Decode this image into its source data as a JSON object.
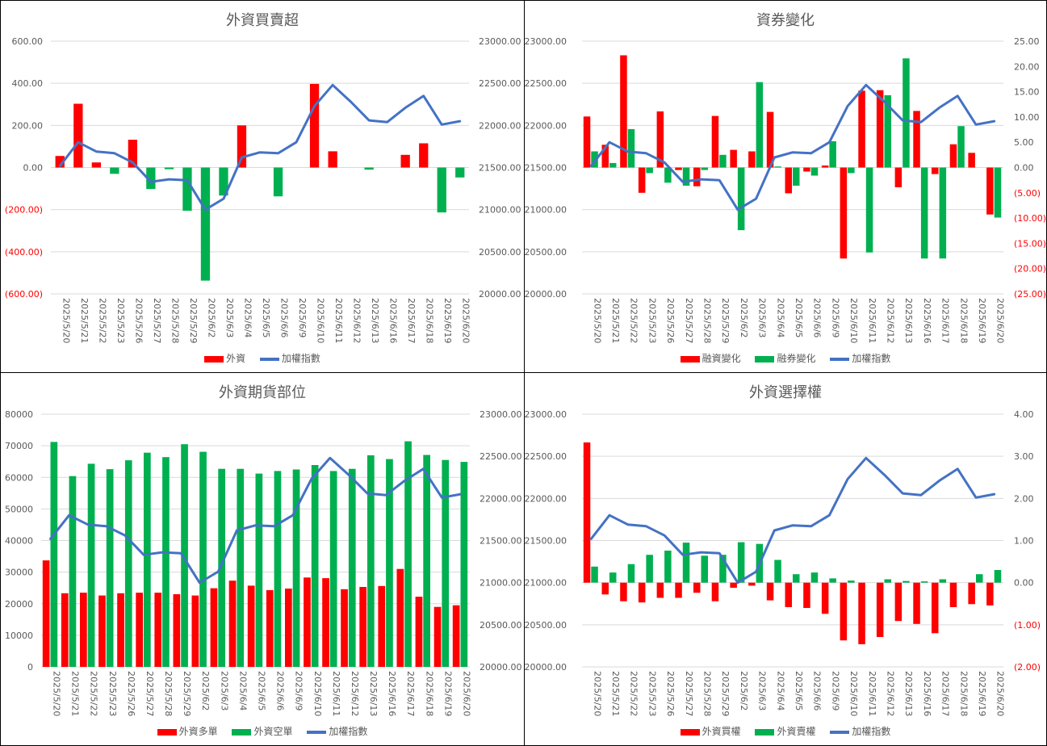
{
  "colors": {
    "red": "#FF0000",
    "green": "#00B050",
    "blue": "#4472C4",
    "grid": "#D9D9D9",
    "text": "#595959"
  },
  "chart_data": [
    {
      "type": "bar",
      "title": "外資買賣超",
      "categories": [
        "2025/5/20",
        "2025/5/21",
        "2025/5/22",
        "2025/5/23",
        "2025/5/26",
        "2025/5/27",
        "2025/5/28",
        "2025/5/29",
        "2025/6/2",
        "2025/6/3",
        "2025/6/4",
        "2025/6/5",
        "2025/6/6",
        "2025/6/9",
        "2025/6/10",
        "2025/6/11",
        "2025/6/12",
        "2025/6/13",
        "2025/6/16",
        "2025/6/17",
        "2025/6/18",
        "2025/6/19",
        "2025/6/20"
      ],
      "left_axis": {
        "ylim": [
          -600,
          600
        ],
        "ticks": [
          -600,
          -400,
          -200,
          0,
          200,
          400,
          600
        ],
        "tick_labels": [
          "(600.00)",
          "(400.00)",
          "(200.00)",
          "0.00",
          "200.00",
          "400.00",
          "600.00"
        ]
      },
      "right_axis": {
        "ylim": [
          20000,
          23000
        ],
        "ticks": [
          20000,
          20500,
          21000,
          21500,
          22000,
          22500,
          23000
        ],
        "tick_labels": [
          "20000.00",
          "20500.00",
          "21000.00",
          "21500.00",
          "22000.00",
          "22500.00",
          "23000.00"
        ]
      },
      "series": [
        {
          "name": "外資",
          "kind": "signed_bar",
          "axis": "left",
          "color": "#FF0000",
          "neg_color": "#00B050",
          "values": [
            55,
            303,
            24,
            -30,
            132,
            -102,
            -8,
            -205,
            -537,
            -133,
            200,
            0,
            -137,
            0,
            397,
            77,
            0,
            -10,
            0,
            60,
            115,
            -213,
            -47
          ]
        },
        {
          "name": "加權指數",
          "kind": "line",
          "axis": "right",
          "color": "#4472C4",
          "values": [
            21520,
            21800,
            21690,
            21670,
            21560,
            21330,
            21360,
            21350,
            21000,
            21130,
            21620,
            21680,
            21670,
            21800,
            22230,
            22480,
            22280,
            22060,
            22040,
            22210,
            22350,
            22010,
            22050
          ]
        }
      ]
    },
    {
      "type": "bar",
      "title": "資券變化",
      "categories": [
        "2025/5/20",
        "2025/5/21",
        "2025/5/22",
        "2025/5/23",
        "2025/5/26",
        "2025/5/27",
        "2025/5/28",
        "2025/5/29",
        "2025/6/2",
        "2025/6/3",
        "2025/6/4",
        "2025/6/5",
        "2025/6/6",
        "2025/6/9",
        "2025/6/10",
        "2025/6/11",
        "2025/6/12",
        "2025/6/13",
        "2025/6/16",
        "2025/6/17",
        "2025/6/18",
        "2025/6/19",
        "2025/6/20"
      ],
      "left_axis": {
        "ylim": [
          20000,
          23000
        ],
        "ticks": [
          20000,
          20500,
          21000,
          21500,
          22000,
          22500,
          23000
        ],
        "tick_labels": [
          "20000.00",
          "20500.00",
          "21000.00",
          "21500.00",
          "22000.00",
          "22500.00",
          "23000.00"
        ]
      },
      "right_axis": {
        "ylim": [
          -25,
          25
        ],
        "ticks": [
          -25,
          -20,
          -15,
          -10,
          -5,
          0,
          5,
          10,
          15,
          20,
          25
        ],
        "tick_labels": [
          "(25.00)",
          "(20.00)",
          "(15.00)",
          "(10.00)",
          "(5.00)",
          "0.00",
          "5.00",
          "10.00",
          "15.00",
          "20.00",
          "25.00"
        ]
      },
      "series": [
        {
          "name": "融資變化",
          "kind": "bar",
          "axis": "right",
          "color": "#FF0000",
          "values": [
            10.1,
            4.5,
            22.2,
            -5.0,
            11.1,
            -0.5,
            -3.7,
            10.2,
            3.5,
            3.2,
            11.0,
            -5.1,
            -0.8,
            0.4,
            -18.0,
            15.2,
            15.3,
            -3.9,
            11.2,
            -1.3,
            4.6,
            2.9,
            -9.3
          ]
        },
        {
          "name": "融券變化",
          "kind": "bar",
          "axis": "right",
          "color": "#00B050",
          "values": [
            3.2,
            0.9,
            7.6,
            -1.1,
            -3.0,
            -3.6,
            -0.5,
            2.5,
            -12.4,
            16.9,
            0.2,
            -3.6,
            -1.6,
            5.2,
            -1.1,
            -16.8,
            14.3,
            21.6,
            -18.0,
            -18.0,
            8.2,
            0.0,
            -9.9
          ]
        },
        {
          "name": "加權指數",
          "kind": "line",
          "axis": "left",
          "color": "#4472C4",
          "values": [
            21520,
            21800,
            21690,
            21670,
            21560,
            21330,
            21360,
            21350,
            21000,
            21130,
            21620,
            21680,
            21670,
            21800,
            22230,
            22480,
            22280,
            22060,
            22040,
            22210,
            22350,
            22010,
            22050
          ]
        }
      ]
    },
    {
      "type": "bar",
      "title": "外資期貨部位",
      "categories": [
        "2025/5/20",
        "2025/5/21",
        "2025/5/22",
        "2025/5/23",
        "2025/5/26",
        "2025/5/27",
        "2025/5/28",
        "2025/5/29",
        "2025/6/2",
        "2025/6/3",
        "2025/6/4",
        "2025/6/5",
        "2025/6/6",
        "2025/6/9",
        "2025/6/10",
        "2025/6/11",
        "2025/6/12",
        "2025/6/13",
        "2025/6/16",
        "2025/6/17",
        "2025/6/18",
        "2025/6/19",
        "2025/6/20"
      ],
      "left_axis": {
        "ylim": [
          0,
          80000
        ],
        "ticks": [
          0,
          10000,
          20000,
          30000,
          40000,
          50000,
          60000,
          70000,
          80000
        ],
        "tick_labels": [
          "0",
          "10000",
          "20000",
          "30000",
          "40000",
          "50000",
          "60000",
          "70000",
          "80000"
        ]
      },
      "right_axis": {
        "ylim": [
          20000,
          23000
        ],
        "ticks": [
          20000,
          20500,
          21000,
          21500,
          22000,
          22500,
          23000
        ],
        "tick_labels": [
          "20000.00",
          "20500.00",
          "21000.00",
          "21500.00",
          "22000.00",
          "22500.00",
          "23000.00"
        ]
      },
      "series": [
        {
          "name": "外資多單",
          "kind": "bar",
          "axis": "left",
          "color": "#FF0000",
          "values": [
            33700,
            23300,
            23500,
            22600,
            23300,
            23500,
            23500,
            23000,
            22600,
            24900,
            27300,
            25700,
            24300,
            24800,
            28300,
            28100,
            24600,
            25300,
            25600,
            31000,
            22200,
            19000,
            19500
          ]
        },
        {
          "name": "外資空單",
          "kind": "bar",
          "axis": "left",
          "color": "#00B050",
          "values": [
            71200,
            60400,
            64300,
            62600,
            65400,
            67800,
            66400,
            70500,
            68100,
            62700,
            62700,
            61200,
            62000,
            62500,
            63900,
            62000,
            62700,
            67000,
            65800,
            71400,
            67100,
            65500,
            64900
          ]
        },
        {
          "name": "加權指數",
          "kind": "line",
          "axis": "right",
          "color": "#4472C4",
          "values": [
            21520,
            21800,
            21690,
            21670,
            21560,
            21330,
            21360,
            21350,
            21000,
            21130,
            21620,
            21680,
            21670,
            21800,
            22230,
            22480,
            22280,
            22060,
            22040,
            22210,
            22350,
            22010,
            22050
          ]
        }
      ]
    },
    {
      "type": "bar",
      "title": "外資選擇權",
      "categories": [
        "2025/5/20",
        "2025/5/21",
        "2025/5/22",
        "2025/5/23",
        "2025/5/26",
        "2025/5/27",
        "2025/5/28",
        "2025/5/29",
        "2025/6/2",
        "2025/6/3",
        "2025/6/4",
        "2025/6/5",
        "2025/6/6",
        "2025/6/9",
        "2025/6/10",
        "2025/6/11",
        "2025/6/12",
        "2025/6/13",
        "2025/6/16",
        "2025/6/17",
        "2025/6/18",
        "2025/6/19",
        "2025/6/20"
      ],
      "left_axis": {
        "ylim": [
          20000,
          23000
        ],
        "ticks": [
          20000,
          20500,
          21000,
          21500,
          22000,
          22500,
          23000
        ],
        "tick_labels": [
          "20000.00",
          "20500.00",
          "21000.00",
          "21500.00",
          "22000.00",
          "22500.00",
          "23000.00"
        ]
      },
      "right_axis": {
        "ylim": [
          -2,
          4
        ],
        "ticks": [
          -2,
          -1,
          0,
          1,
          2,
          3,
          4
        ],
        "tick_labels": [
          "(2.00)",
          "(1.00)",
          "0.00",
          "1.00",
          "2.00",
          "3.00",
          "4.00"
        ]
      },
      "series": [
        {
          "name": "外資買權",
          "kind": "bar",
          "axis": "right",
          "color": "#FF0000",
          "values": [
            3.33,
            -0.28,
            -0.44,
            -0.47,
            -0.36,
            -0.36,
            -0.24,
            -0.44,
            -0.12,
            -0.07,
            -0.42,
            -0.58,
            -0.6,
            -0.74,
            -1.37,
            -1.46,
            -1.29,
            -0.91,
            -0.98,
            -1.2,
            -0.58,
            -0.51,
            -0.54
          ]
        },
        {
          "name": "外資賣權",
          "kind": "bar",
          "axis": "right",
          "color": "#00B050",
          "values": [
            0.38,
            0.24,
            0.44,
            0.66,
            0.76,
            0.95,
            0.64,
            0.66,
            0.96,
            0.92,
            0.54,
            0.2,
            0.24,
            0.1,
            0.05,
            0.0,
            0.08,
            0.04,
            0.03,
            0.08,
            0.0,
            0.2,
            0.3
          ]
        },
        {
          "name": "加權指數",
          "kind": "line",
          "axis": "left",
          "color": "#4472C4",
          "values": [
            21520,
            21800,
            21690,
            21670,
            21560,
            21330,
            21360,
            21350,
            21000,
            21130,
            21620,
            21680,
            21670,
            21800,
            22230,
            22480,
            22280,
            22060,
            22040,
            22210,
            22350,
            22010,
            22050
          ]
        }
      ]
    }
  ]
}
